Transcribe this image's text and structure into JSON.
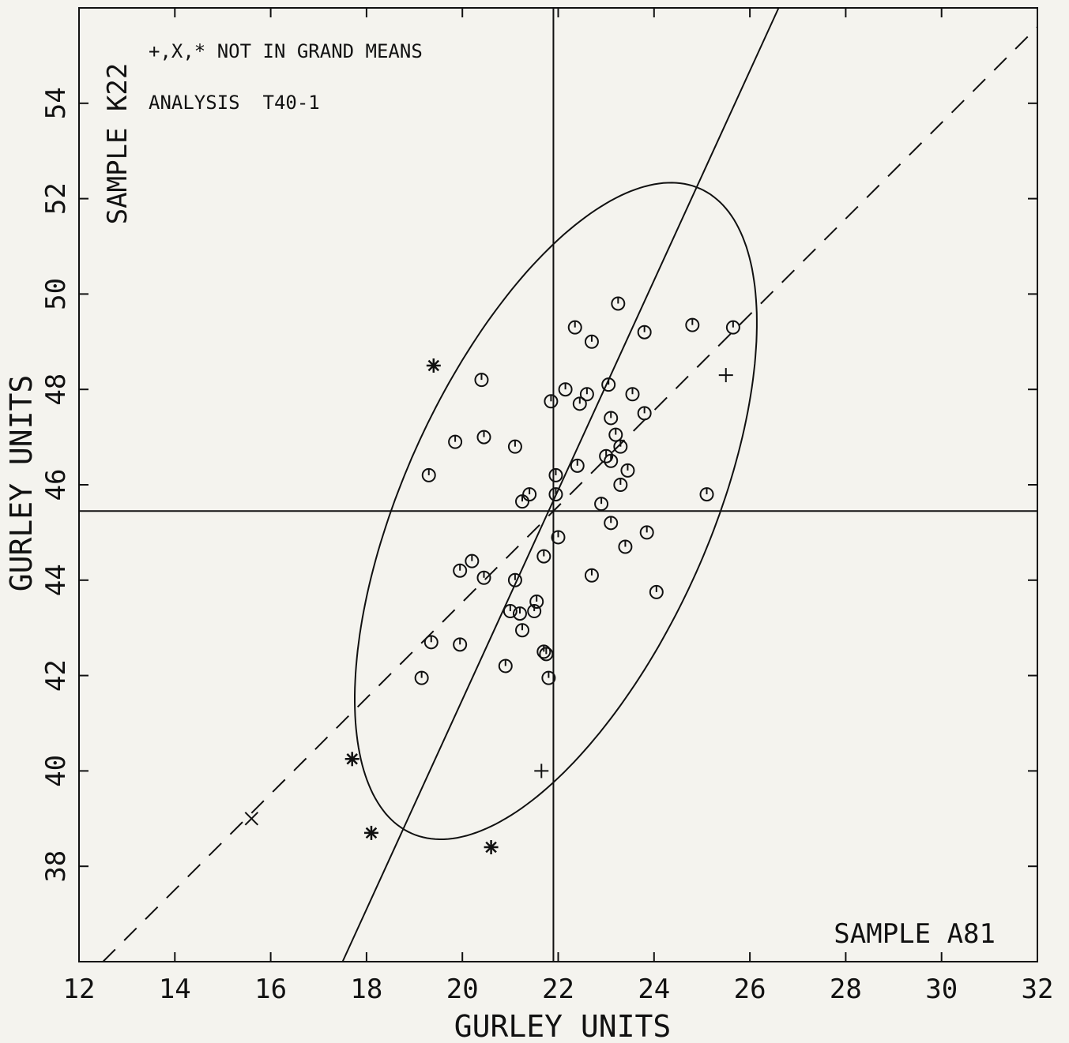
{
  "chart_data": {
    "type": "scatter",
    "xlabel": "GURLEY UNITS",
    "ylabel": "GURLEY UNITS",
    "x_sample_label": "SAMPLE A81",
    "y_sample_label": "SAMPLE K22",
    "annotations": [
      "+,X,* NOT IN GRAND MEANS",
      "ANALYSIS  T40-1"
    ],
    "xlim": [
      12,
      32
    ],
    "ylim": [
      36,
      56
    ],
    "xticks": [
      12,
      14,
      16,
      18,
      20,
      22,
      24,
      26,
      28,
      30,
      32
    ],
    "yticks": [
      38,
      40,
      42,
      44,
      46,
      48,
      50,
      52,
      54
    ],
    "colors": {
      "ink": "#111111",
      "background": "#f4f3ee"
    },
    "median_x": 21.9,
    "median_y": 45.45,
    "ellipse": {
      "center": [
        21.95,
        45.45
      ],
      "semi_axes_along_angle_deg": 66,
      "a": 7.4,
      "b": 3.2
    },
    "fit_line": [
      [
        17.5,
        36.0
      ],
      [
        26.6,
        56.0
      ]
    ],
    "equality_line": [
      [
        12.5,
        36.0
      ],
      [
        32.0,
        55.6
      ]
    ],
    "series": [
      {
        "marker": "circle",
        "points": [
          [
            23.25,
            49.8
          ],
          [
            22.35,
            49.3
          ],
          [
            24.8,
            49.35
          ],
          [
            25.65,
            49.3
          ],
          [
            23.8,
            49.2
          ],
          [
            22.7,
            49.0
          ],
          [
            20.4,
            48.2
          ],
          [
            22.15,
            48.0
          ],
          [
            23.05,
            48.1
          ],
          [
            21.85,
            47.75
          ],
          [
            22.6,
            47.9
          ],
          [
            22.45,
            47.7
          ],
          [
            23.55,
            47.9
          ],
          [
            23.8,
            47.5
          ],
          [
            23.1,
            47.4
          ],
          [
            19.85,
            46.9
          ],
          [
            20.45,
            47.0
          ],
          [
            21.1,
            46.8
          ],
          [
            23.2,
            47.05
          ],
          [
            23.3,
            46.8
          ],
          [
            23.0,
            46.6
          ],
          [
            23.1,
            46.5
          ],
          [
            22.4,
            46.4
          ],
          [
            19.3,
            46.2
          ],
          [
            21.95,
            46.2
          ],
          [
            23.45,
            46.3
          ],
          [
            23.3,
            46.0
          ],
          [
            21.95,
            45.8
          ],
          [
            21.4,
            45.8
          ],
          [
            21.25,
            45.65
          ],
          [
            22.9,
            45.6
          ],
          [
            25.1,
            45.8
          ],
          [
            23.1,
            45.2
          ],
          [
            23.85,
            45.0
          ],
          [
            22.0,
            44.9
          ],
          [
            23.4,
            44.7
          ],
          [
            21.7,
            44.5
          ],
          [
            19.95,
            44.2
          ],
          [
            20.2,
            44.4
          ],
          [
            20.45,
            44.05
          ],
          [
            21.1,
            44.0
          ],
          [
            22.7,
            44.1
          ],
          [
            24.05,
            43.75
          ],
          [
            21.55,
            43.55
          ],
          [
            21.0,
            43.35
          ],
          [
            21.2,
            43.3
          ],
          [
            21.5,
            43.35
          ],
          [
            21.25,
            42.95
          ],
          [
            19.35,
            42.7
          ],
          [
            19.95,
            42.65
          ],
          [
            21.7,
            42.5
          ],
          [
            21.75,
            42.45
          ],
          [
            20.9,
            42.2
          ],
          [
            19.15,
            41.95
          ],
          [
            21.8,
            41.95
          ]
        ]
      },
      {
        "marker": "asterisk",
        "points": [
          [
            19.4,
            48.5
          ],
          [
            17.7,
            40.25
          ],
          [
            18.1,
            38.7
          ],
          [
            20.6,
            38.4
          ]
        ]
      },
      {
        "marker": "x",
        "points": [
          [
            15.6,
            39.0
          ]
        ]
      },
      {
        "marker": "plus",
        "points": [
          [
            25.5,
            48.3
          ],
          [
            21.65,
            40.0
          ]
        ]
      }
    ]
  }
}
